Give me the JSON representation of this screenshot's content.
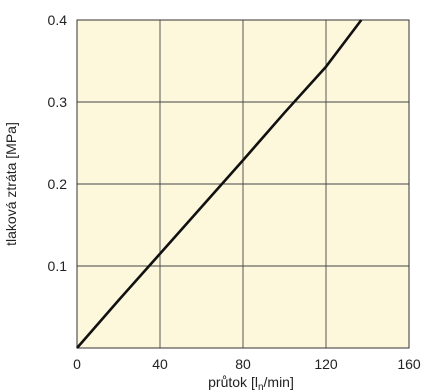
{
  "chart_data": {
    "type": "line",
    "xlabel_pre": "průtok  [l",
    "xlabel_sub": "n",
    "xlabel_post": "/min]",
    "ylabel": "tlaková ztráta [MPa]",
    "xlim": [
      0,
      160
    ],
    "ylim": [
      0,
      0.4
    ],
    "xticks": [
      "0",
      "40",
      "80",
      "120",
      "160"
    ],
    "yticks": [
      "0.1",
      "0.2",
      "0.3",
      "0.4"
    ],
    "grid": true,
    "plot_background": "#fdf8dc",
    "line_color": "#111111",
    "series": [
      {
        "x": [
          0,
          20,
          40,
          60,
          80,
          100,
          120,
          137
        ],
        "y": [
          0,
          0.058,
          0.115,
          0.172,
          0.229,
          0.287,
          0.343,
          0.4
        ]
      }
    ]
  }
}
